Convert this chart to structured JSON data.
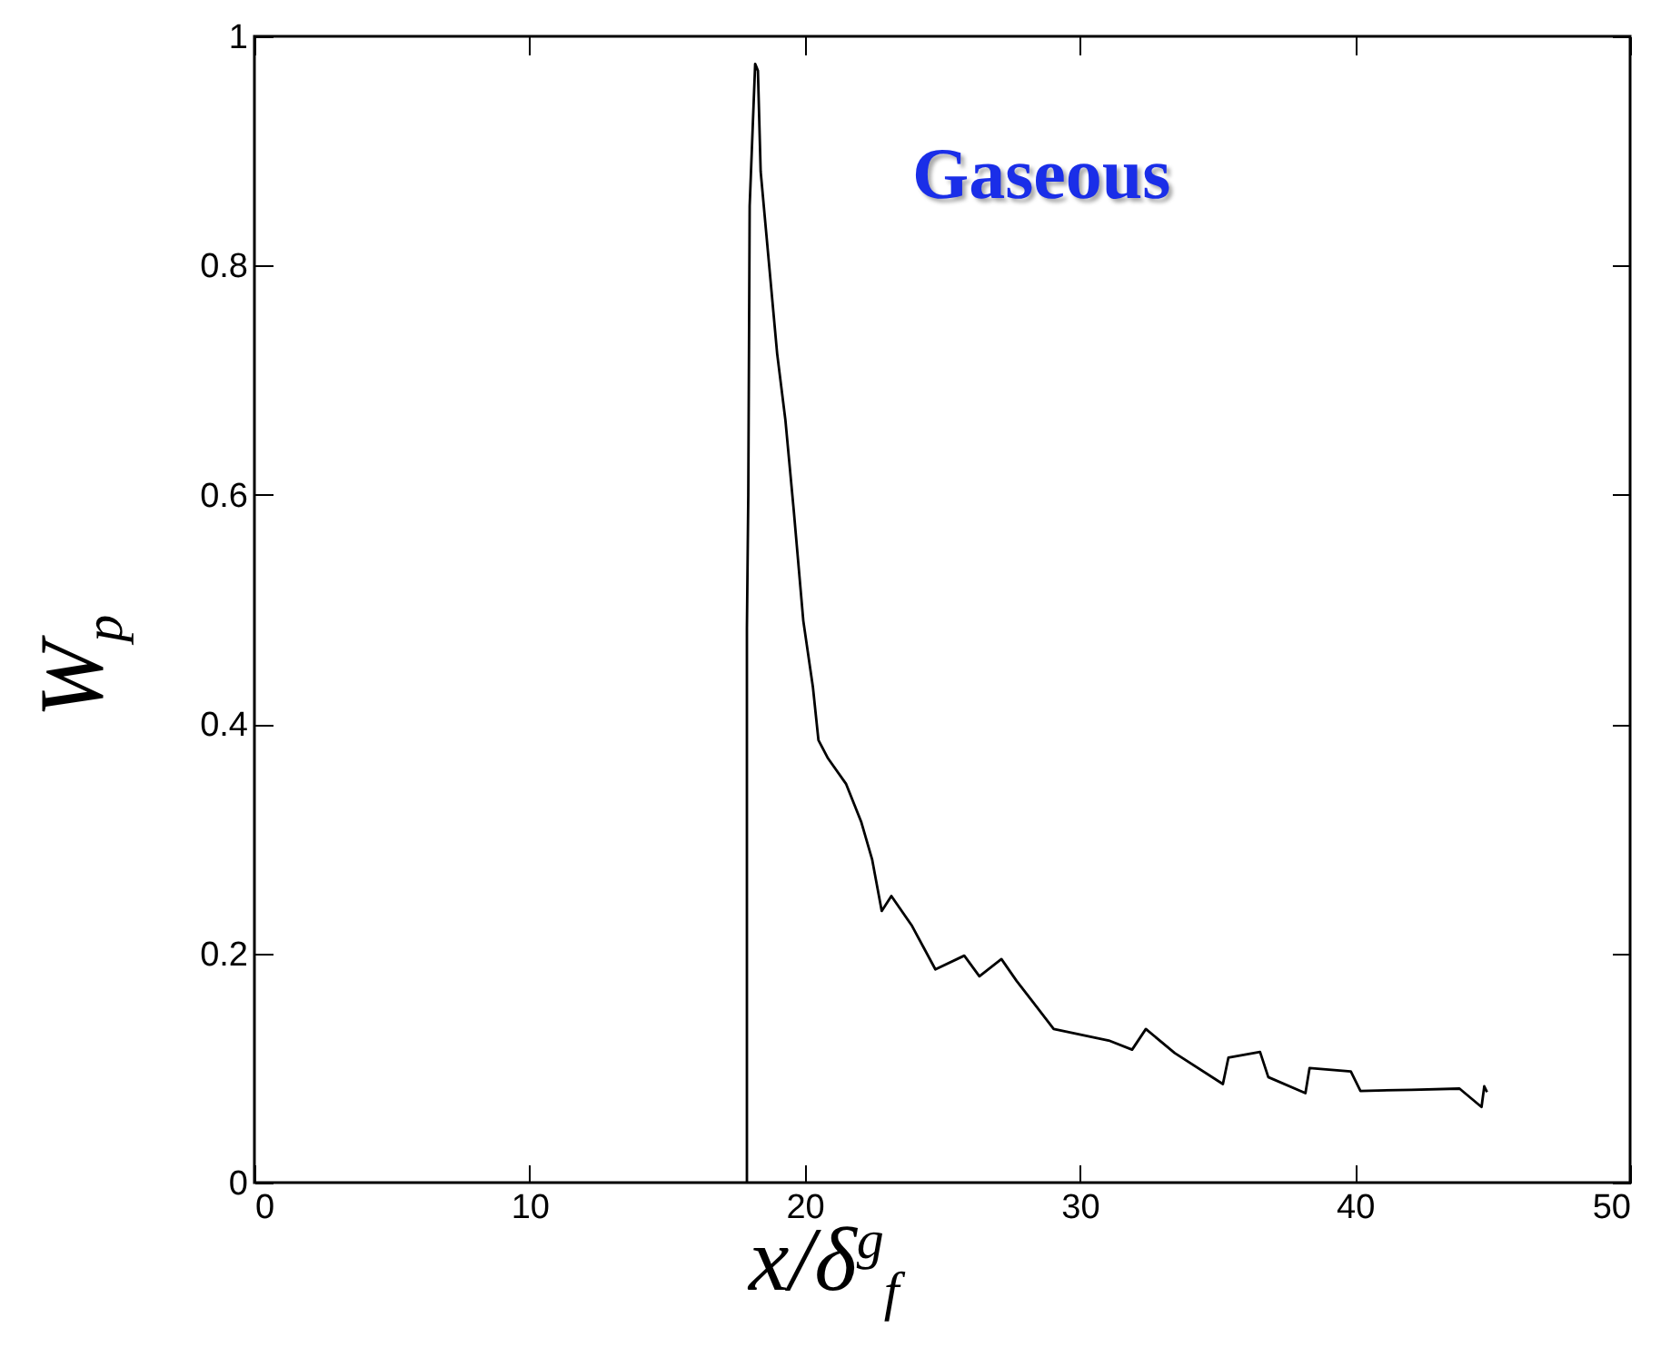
{
  "chart_data": {
    "type": "line",
    "xlabel": "x/δ$^{g}$$_{f}$",
    "ylabel": "W$_{p}$",
    "annotations": [
      "Gaseous"
    ],
    "xlim": [
      0,
      50
    ],
    "ylim": [
      0,
      1
    ],
    "xticks": [
      0,
      10,
      20,
      30,
      40,
      50
    ],
    "yticks": [
      0,
      0.2,
      0.4,
      0.6,
      0.8,
      1
    ],
    "grid": false,
    "marker": "none",
    "line_style": "solid",
    "series": [
      {
        "color": "#000000",
        "x": [
          17.9,
          17.9,
          17.95,
          18.0,
          18.2,
          18.3,
          18.4,
          19.0,
          19.3,
          19.6,
          19.95,
          20.3,
          20.5,
          20.85,
          21.5,
          22.05,
          22.45,
          22.8,
          23.15,
          23.9,
          24.75,
          25.8,
          26.35,
          27.15,
          27.7,
          28.25,
          29.05,
          31.05,
          31.9,
          32.4,
          33.45,
          35.2,
          35.4,
          36.55,
          36.85,
          38.2,
          38.35,
          39.85,
          40.2,
          42.05,
          43.8,
          44.6,
          44.7,
          44.8
        ],
        "values": [
          0,
          0.484,
          0.6,
          0.852,
          0.976,
          0.97,
          0.882,
          0.723,
          0.665,
          0.587,
          0.49,
          0.432,
          0.386,
          0.37,
          0.348,
          0.315,
          0.282,
          0.237,
          0.25,
          0.224,
          0.186,
          0.198,
          0.18,
          0.195,
          0.176,
          0.159,
          0.134,
          0.124,
          0.116,
          0.134,
          0.113,
          0.086,
          0.109,
          0.114,
          0.092,
          0.078,
          0.1,
          0.097,
          0.08,
          0.081,
          0.082,
          0.066,
          0.084,
          0.079
        ]
      }
    ]
  }
}
